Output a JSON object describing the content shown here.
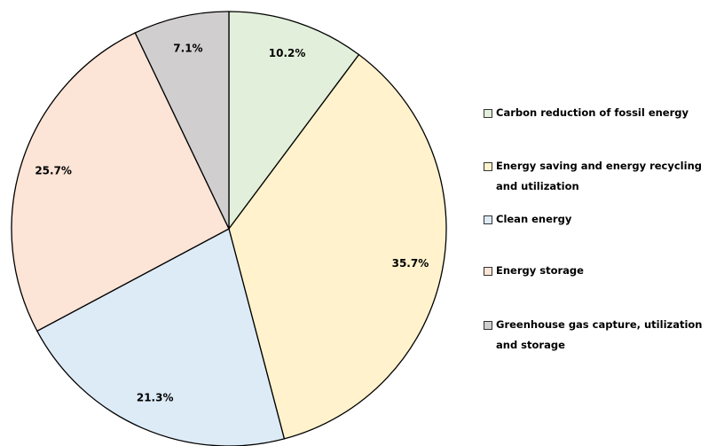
{
  "chart_data": {
    "type": "pie",
    "categories": [
      "Carbon reduction of fossil energy",
      "Energy saving and energy recycling and utilization",
      "Clean energy",
      "Energy storage",
      "Greenhouse gas capture, utilization and storage"
    ],
    "values": [
      10.2,
      35.7,
      21.3,
      25.7,
      7.1
    ],
    "value_labels": [
      "10.2%",
      "35.7%",
      "21.3%",
      "25.7%",
      "7.1%"
    ],
    "colors": [
      "#e2efda",
      "#fff2cc",
      "#ddebf7",
      "#fce4d6",
      "#d0cece"
    ],
    "legend": "right"
  }
}
